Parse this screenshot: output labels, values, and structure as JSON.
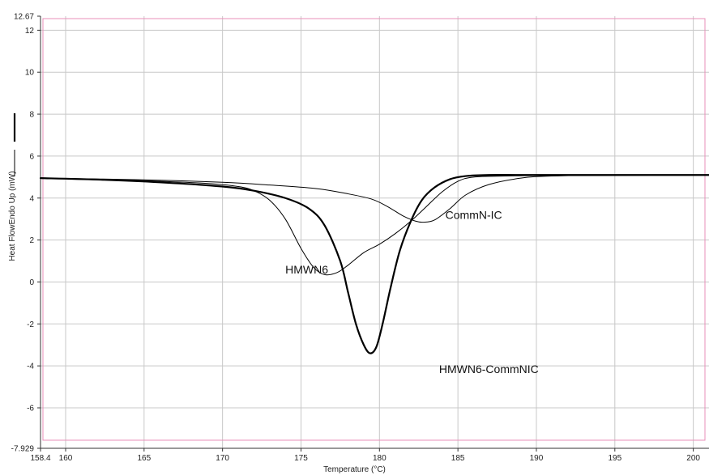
{
  "chart_data": {
    "type": "line",
    "title": "",
    "xlabel": "Temperature (°C)",
    "ylabel": "Heat FlowEndo Up (mW)",
    "xlim": [
      158.4,
      201
    ],
    "ylim": [
      -7.929,
      12.67
    ],
    "x_ticks": [
      {
        "value": 158.4,
        "label": "158.4"
      },
      {
        "value": 160,
        "label": "160"
      },
      {
        "value": 165,
        "label": "165"
      },
      {
        "value": 170,
        "label": "170"
      },
      {
        "value": 175,
        "label": "175"
      },
      {
        "value": 180,
        "label": "180"
      },
      {
        "value": 185,
        "label": "185"
      },
      {
        "value": 190,
        "label": "190"
      },
      {
        "value": 195,
        "label": "195"
      },
      {
        "value": 200,
        "label": "200"
      }
    ],
    "y_ticks": [
      {
        "value": 12.67,
        "label": "12.67"
      },
      {
        "value": 12,
        "label": "12"
      },
      {
        "value": 10,
        "label": "10"
      },
      {
        "value": 8,
        "label": "8"
      },
      {
        "value": 6,
        "label": "6"
      },
      {
        "value": 4,
        "label": "4"
      },
      {
        "value": 2,
        "label": "2"
      },
      {
        "value": 0,
        "label": "0"
      },
      {
        "value": -2,
        "label": "-2"
      },
      {
        "value": -4,
        "label": "-4"
      },
      {
        "value": -6,
        "label": "-6"
      },
      {
        "value": -7.929,
        "label": "-7.929"
      }
    ],
    "grid": true,
    "series": [
      {
        "name": "HMWN6",
        "label_at": [
          174,
          0.4
        ],
        "stroke_width": 1,
        "x": [
          158.4,
          162,
          166,
          169,
          171,
          172,
          173,
          174,
          175,
          175.8,
          176.5,
          177.3,
          178,
          179,
          180,
          181,
          182,
          183,
          184,
          185,
          186,
          188,
          190,
          195,
          201
        ],
        "y": [
          4.95,
          4.9,
          4.8,
          4.7,
          4.55,
          4.35,
          3.9,
          3.0,
          1.6,
          0.7,
          0.35,
          0.45,
          0.8,
          1.4,
          1.8,
          2.3,
          2.9,
          3.6,
          4.3,
          4.8,
          5.0,
          5.05,
          5.07,
          5.08,
          5.1
        ]
      },
      {
        "name": "HMWN6-CommNIC",
        "label_at": [
          183.8,
          -4.35
        ],
        "stroke_width": 2.2,
        "x": [
          158.4,
          162,
          166,
          170,
          172,
          174,
          175.5,
          176.5,
          177.5,
          178,
          178.5,
          179,
          179.4,
          179.8,
          180.2,
          180.7,
          181.3,
          182,
          182.7,
          183.5,
          184.5,
          185.5,
          187,
          190,
          195,
          201
        ],
        "y": [
          4.95,
          4.88,
          4.75,
          4.55,
          4.35,
          4.0,
          3.5,
          2.7,
          1.0,
          -0.5,
          -2.0,
          -3.0,
          -3.4,
          -3.1,
          -2.0,
          -0.3,
          1.5,
          2.9,
          3.9,
          4.5,
          4.9,
          5.05,
          5.1,
          5.1,
          5.1,
          5.1
        ]
      },
      {
        "name": "CommN-IC",
        "label_at": [
          184.2,
          3.0
        ],
        "stroke_width": 1,
        "x": [
          158.4,
          165,
          170,
          173,
          176,
          178,
          179.5,
          180.5,
          181.5,
          182.3,
          182.8,
          183.5,
          184.5,
          185.5,
          187,
          189,
          191,
          195,
          201
        ],
        "y": [
          4.95,
          4.87,
          4.75,
          4.62,
          4.45,
          4.2,
          3.95,
          3.6,
          3.15,
          2.9,
          2.85,
          2.95,
          3.5,
          4.15,
          4.65,
          4.95,
          5.05,
          5.1,
          5.1
        ]
      }
    ]
  }
}
